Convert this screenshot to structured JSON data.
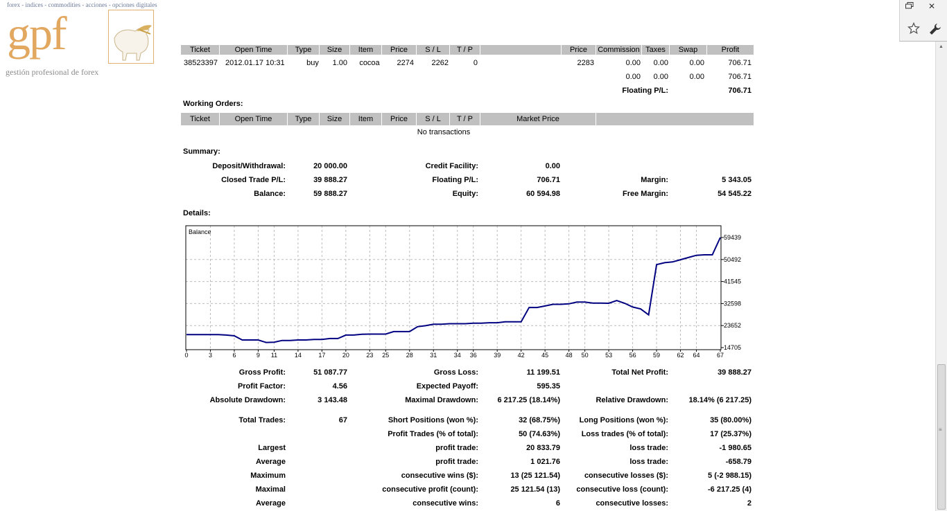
{
  "logo": {
    "tagline_top": "forex - indices - commodities - acciones - opciones digitales",
    "brand": "gpf",
    "tagline_bottom": "gestión profesional de forex"
  },
  "browser": {
    "restore_icon": "restore-window-icon",
    "close_label": "✕",
    "star_icon": "bookmark-star-icon",
    "wrench_icon": "wrench-icon"
  },
  "open_trades": {
    "headers": [
      "Ticket",
      "Open Time",
      "Type",
      "Size",
      "Item",
      "Price",
      "S / L",
      "T / P",
      "",
      "Price",
      "Commission",
      "Taxes",
      "Swap",
      "Profit"
    ],
    "row": {
      "ticket": "38523397",
      "open_time": "2012.01.17 10:31",
      "type": "buy",
      "size": "1.00",
      "item": "cocoa",
      "price": "2274",
      "sl": "2262",
      "tp": "0",
      "market_price": "2283",
      "commission": "0.00",
      "taxes": "0.00",
      "swap": "0.00",
      "profit": "706.71"
    },
    "totals": {
      "commission": "0.00",
      "taxes": "0.00",
      "swap": "0.00",
      "profit": "706.71"
    },
    "floating_label": "Floating P/L:",
    "floating_value": "706.71"
  },
  "working_orders": {
    "title": "Working Orders:",
    "headers": [
      "Ticket",
      "Open Time",
      "Type",
      "Size",
      "Item",
      "Price",
      "S / L",
      "T / P",
      "Market Price",
      ""
    ],
    "empty_text": "No transactions"
  },
  "summary": {
    "title": "Summary:",
    "deposit_label": "Deposit/Withdrawal:",
    "deposit_value": "20 000.00",
    "credit_label": "Credit Facility:",
    "credit_value": "0.00",
    "closed_label": "Closed Trade P/L:",
    "closed_value": "39 888.27",
    "floating_label": "Floating P/L:",
    "floating_value": "706.71",
    "margin_label": "Margin:",
    "margin_value": "5 343.05",
    "balance_label": "Balance:",
    "balance_value": "59 888.27",
    "equity_label": "Equity:",
    "equity_value": "60 594.98",
    "free_margin_label": "Free Margin:",
    "free_margin_value": "54 545.22"
  },
  "details": {
    "title": "Details:"
  },
  "chart_data": {
    "type": "line",
    "title": "Balance",
    "xlabel": "",
    "ylabel": "",
    "x_ticks": [
      "0",
      "3",
      "6",
      "9",
      "11",
      "14",
      "17",
      "20",
      "23",
      "25",
      "28",
      "31",
      "34",
      "36",
      "39",
      "42",
      "45",
      "48",
      "50",
      "53",
      "56",
      "59",
      "62",
      "64",
      "67"
    ],
    "y_ticks": [
      "59439",
      "50492",
      "41545",
      "32598",
      "23652",
      "14705"
    ],
    "ylim": [
      14705,
      59439
    ],
    "xlim": [
      0,
      67
    ],
    "grid": true,
    "line_color": "#000080",
    "series": [
      {
        "x": [
          0,
          1,
          2,
          3,
          4,
          5,
          6,
          7,
          8,
          9,
          10,
          11,
          12,
          13,
          14,
          15,
          16,
          17,
          18,
          19,
          20,
          21,
          22,
          23,
          24,
          25,
          26,
          27,
          28,
          29,
          30,
          31,
          32,
          33,
          34,
          35,
          36,
          37,
          38,
          39,
          40,
          41,
          42,
          43,
          44,
          45,
          46,
          47,
          48,
          49,
          50,
          51,
          52,
          53,
          54,
          55,
          56,
          57,
          58,
          59,
          60,
          61,
          62,
          63,
          64,
          65,
          66,
          67
        ],
        "values": [
          20000,
          20000,
          20000,
          20000,
          20000,
          19800,
          19500,
          17800,
          17800,
          17800,
          16800,
          16900,
          17600,
          17600,
          17800,
          17800,
          18000,
          18000,
          18400,
          18400,
          19800,
          19800,
          20100,
          20200,
          20200,
          20200,
          21200,
          21200,
          21200,
          23200,
          23600,
          24200,
          24200,
          24400,
          24400,
          24400,
          24600,
          24600,
          24800,
          24800,
          25200,
          25200,
          25200,
          31000,
          31000,
          31600,
          32300,
          32300,
          32500,
          33200,
          33200,
          32800,
          32800,
          32700,
          33800,
          32700,
          31200,
          30400,
          28000,
          48400,
          49200,
          49500,
          50400,
          51300,
          52200,
          52400,
          52400,
          59439
        ]
      }
    ]
  },
  "stats": {
    "gross_profit_label": "Gross Profit:",
    "gross_profit_value": "51 087.77",
    "gross_loss_label": "Gross Loss:",
    "gross_loss_value": "11 199.51",
    "total_net_label": "Total Net Profit:",
    "total_net_value": "39 888.27",
    "profit_factor_label": "Profit Factor:",
    "profit_factor_value": "4.56",
    "expected_payoff_label": "Expected Payoff:",
    "expected_payoff_value": "595.35",
    "abs_dd_label": "Absolute Drawdown:",
    "abs_dd_value": "3 143.48",
    "max_dd_label": "Maximal Drawdown:",
    "max_dd_value": "6 217.25 (18.14%)",
    "rel_dd_label": "Relative Drawdown:",
    "rel_dd_value": "18.14% (6 217.25)",
    "total_trades_label": "Total Trades:",
    "total_trades_value": "67",
    "short_label": "Short Positions (won %):",
    "short_value": "32 (68.75%)",
    "long_label": "Long Positions (won %):",
    "long_value": "35 (80.00%)",
    "profit_trades_label": "Profit Trades (% of total):",
    "profit_trades_value": "50 (74.63%)",
    "loss_trades_label": "Loss trades (% of total):",
    "loss_trades_value": "17 (25.37%)",
    "largest_label": "Largest",
    "largest_profit_label": "profit trade:",
    "largest_profit_value": "20 833.79",
    "largest_loss_label": "loss trade:",
    "largest_loss_value": "-1 980.65",
    "average_label": "Average",
    "avg_profit_label": "profit trade:",
    "avg_profit_value": "1 021.76",
    "avg_loss_label": "loss trade:",
    "avg_loss_value": "-658.79",
    "maximum_label": "Maximum",
    "cons_wins_label": "consecutive wins ($):",
    "cons_wins_value": "13 (25 121.54)",
    "cons_losses_label": "consecutive losses ($):",
    "cons_losses_value": "5 (-2 988.15)",
    "maximal_label": "Maximal",
    "cons_profit_label": "consecutive profit (count):",
    "cons_profit_value": "25 121.54 (13)",
    "cons_loss_label": "consecutive loss (count):",
    "cons_loss_value": "-6 217.25 (4)",
    "average2_label": "Average",
    "avg_cons_wins_label": "consecutive wins:",
    "avg_cons_wins_value": "6",
    "avg_cons_losses_label": "consecutive losses:",
    "avg_cons_losses_value": "2"
  }
}
